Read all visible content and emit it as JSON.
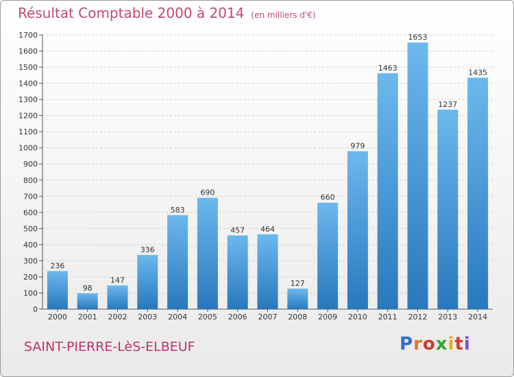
{
  "title": "Résultat Comptable 2000 à 2014",
  "subtitle": "(en milliers d'€)",
  "place": "SAINT-PIERRE-LèS-ELBEUF",
  "logo": {
    "letters": [
      "P",
      "r",
      "o",
      "x",
      "i",
      "t",
      "i"
    ],
    "colors": [
      "#2e6fd0",
      "#e8732a",
      "#d33a2c",
      "#3aa035",
      "#e0b21a",
      "#d33a2c",
      "#7a4fd0"
    ]
  },
  "colors": {
    "bar_top": "#6cb8ee",
    "bar_bottom": "#2878bd"
  },
  "chart_data": {
    "type": "bar",
    "title": "Résultat Comptable 2000 à 2014",
    "subtitle": "(en milliers d'€)",
    "categories": [
      "2000",
      "2001",
      "2002",
      "2003",
      "2004",
      "2005",
      "2006",
      "2007",
      "2008",
      "2009",
      "2010",
      "2011",
      "2012",
      "2013",
      "2014"
    ],
    "values": [
      236,
      98,
      147,
      336,
      583,
      690,
      457,
      464,
      127,
      660,
      979,
      1463,
      1653,
      1237,
      1435
    ],
    "ylim": [
      0,
      1700
    ],
    "yticks": [
      0,
      100,
      200,
      300,
      400,
      500,
      600,
      700,
      800,
      900,
      1000,
      1100,
      1200,
      1300,
      1400,
      1500,
      1600,
      1700
    ],
    "grid": true
  }
}
